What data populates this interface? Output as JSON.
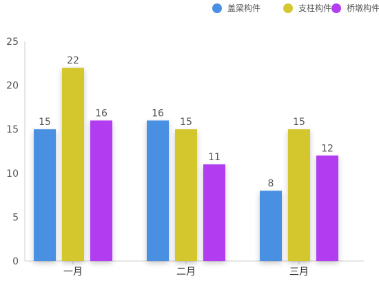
{
  "chart_data": {
    "type": "bar",
    "categories": [
      "一月",
      "二月",
      "三月"
    ],
    "series": [
      {
        "name": "盖梁构件",
        "values": [
          15,
          16,
          8
        ],
        "color": "#4a90e2"
      },
      {
        "name": "支柱构件",
        "values": [
          22,
          15,
          15
        ],
        "color": "#d4c72f"
      },
      {
        "name": "桥墩构件",
        "values": [
          16,
          11,
          12
        ],
        "color": "#b23ef0"
      }
    ],
    "y_ticks": [
      "0",
      "5",
      "10",
      "15",
      "20",
      "25"
    ],
    "ylim": [
      0,
      25
    ],
    "grid": false,
    "legend_position": "top-right",
    "data_labels": true
  }
}
